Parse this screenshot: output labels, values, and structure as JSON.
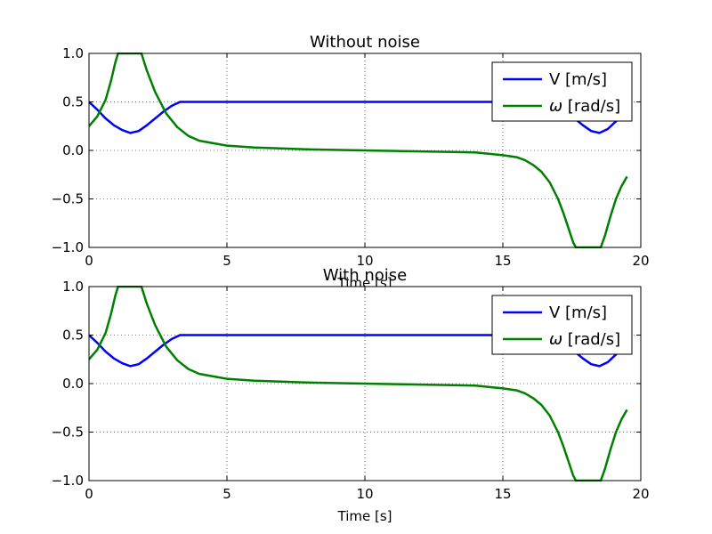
{
  "chart_data": [
    {
      "type": "line",
      "title": "Without noise",
      "xlabel": "Time [s]",
      "ylabel": "",
      "xlim": [
        0,
        20
      ],
      "ylim": [
        -1.0,
        1.0
      ],
      "xticks": [
        0,
        5,
        10,
        15,
        20
      ],
      "xtick_labels": [
        "0",
        "5",
        "10",
        "15",
        "20"
      ],
      "yticks": [
        -1.0,
        -0.5,
        0.0,
        0.5,
        1.0
      ],
      "ytick_labels": [
        "−1.0",
        "−0.5",
        "0.0",
        "0.5",
        "1.0"
      ],
      "grid": true,
      "legend": {
        "position": "top-right",
        "entries": [
          {
            "prefix": "",
            "label": "V [m/s]"
          },
          {
            "prefix": "ω",
            "label": " [rad/s]"
          }
        ]
      },
      "series": [
        {
          "name": "V [m/s]",
          "color": "#0000ff",
          "x": [
            0,
            0.3,
            0.6,
            0.9,
            1.2,
            1.5,
            1.8,
            2.1,
            2.4,
            2.7,
            3.0,
            3.3,
            3.5,
            5,
            10,
            15,
            16.7,
            17.0,
            17.3,
            17.6,
            17.9,
            18.2,
            18.5,
            18.8,
            19.1,
            19.5
          ],
          "y": [
            0.5,
            0.42,
            0.33,
            0.26,
            0.21,
            0.18,
            0.2,
            0.26,
            0.33,
            0.4,
            0.46,
            0.5,
            0.5,
            0.5,
            0.5,
            0.5,
            0.5,
            0.46,
            0.4,
            0.33,
            0.26,
            0.2,
            0.18,
            0.22,
            0.3,
            0.42
          ]
        },
        {
          "name": "ω [rad/s]",
          "color": "#008000",
          "x": [
            0,
            0.3,
            0.6,
            0.8,
            0.95,
            1.05,
            1.3,
            1.6,
            1.9,
            2.1,
            2.4,
            2.8,
            3.2,
            3.6,
            4.0,
            5,
            6,
            8,
            10,
            12,
            14,
            15,
            15.5,
            15.8,
            16.1,
            16.4,
            16.7,
            17.0,
            17.2,
            17.4,
            17.55,
            17.65,
            18.0,
            18.3,
            18.55,
            18.7,
            18.9,
            19.1,
            19.3,
            19.5
          ],
          "y": [
            0.25,
            0.35,
            0.52,
            0.72,
            0.9,
            1.0,
            1.0,
            1.0,
            1.0,
            0.82,
            0.6,
            0.38,
            0.24,
            0.15,
            0.1,
            0.05,
            0.03,
            0.01,
            0.0,
            -0.01,
            -0.02,
            -0.05,
            -0.07,
            -0.1,
            -0.15,
            -0.22,
            -0.33,
            -0.5,
            -0.65,
            -0.82,
            -0.95,
            -1.0,
            -1.0,
            -1.0,
            -1.0,
            -0.88,
            -0.68,
            -0.5,
            -0.37,
            -0.27
          ]
        }
      ]
    },
    {
      "type": "line",
      "title": "With noise",
      "xlabel": "Time [s]",
      "ylabel": "",
      "xlim": [
        0,
        20
      ],
      "ylim": [
        -1.0,
        1.0
      ],
      "xticks": [
        0,
        5,
        10,
        15,
        20
      ],
      "xtick_labels": [
        "0",
        "5",
        "10",
        "15",
        "20"
      ],
      "yticks": [
        -1.0,
        -0.5,
        0.0,
        0.5,
        1.0
      ],
      "ytick_labels": [
        "−1.0",
        "−0.5",
        "0.0",
        "0.5",
        "1.0"
      ],
      "grid": true,
      "legend": {
        "position": "top-right",
        "entries": [
          {
            "prefix": "",
            "label": "V [m/s]"
          },
          {
            "prefix": "ω",
            "label": " [rad/s]"
          }
        ]
      },
      "series": [
        {
          "name": "V [m/s]",
          "color": "#0000ff",
          "x": [
            0,
            0.3,
            0.6,
            0.9,
            1.2,
            1.5,
            1.8,
            2.1,
            2.4,
            2.7,
            3.0,
            3.3,
            3.5,
            5,
            10,
            15,
            16.7,
            17.0,
            17.3,
            17.6,
            17.9,
            18.2,
            18.5,
            18.8,
            19.1,
            19.5
          ],
          "y": [
            0.5,
            0.42,
            0.33,
            0.26,
            0.21,
            0.18,
            0.2,
            0.26,
            0.33,
            0.4,
            0.46,
            0.5,
            0.5,
            0.5,
            0.5,
            0.5,
            0.5,
            0.46,
            0.4,
            0.33,
            0.26,
            0.2,
            0.18,
            0.22,
            0.3,
            0.42
          ]
        },
        {
          "name": "ω [rad/s]",
          "color": "#008000",
          "x": [
            0,
            0.3,
            0.6,
            0.8,
            0.95,
            1.05,
            1.3,
            1.6,
            1.9,
            2.1,
            2.4,
            2.8,
            3.2,
            3.6,
            4.0,
            5,
            6,
            8,
            10,
            12,
            14,
            15,
            15.5,
            15.8,
            16.1,
            16.4,
            16.7,
            17.0,
            17.2,
            17.4,
            17.55,
            17.65,
            18.0,
            18.3,
            18.55,
            18.7,
            18.9,
            19.1,
            19.3,
            19.5
          ],
          "y": [
            0.25,
            0.35,
            0.52,
            0.72,
            0.9,
            1.0,
            1.0,
            1.0,
            1.0,
            0.82,
            0.6,
            0.38,
            0.24,
            0.15,
            0.1,
            0.05,
            0.03,
            0.01,
            0.0,
            -0.01,
            -0.02,
            -0.05,
            -0.07,
            -0.1,
            -0.15,
            -0.22,
            -0.33,
            -0.5,
            -0.65,
            -0.82,
            -0.95,
            -1.0,
            -1.0,
            -1.0,
            -1.0,
            -0.88,
            -0.68,
            -0.5,
            -0.37,
            -0.27
          ]
        }
      ]
    }
  ]
}
